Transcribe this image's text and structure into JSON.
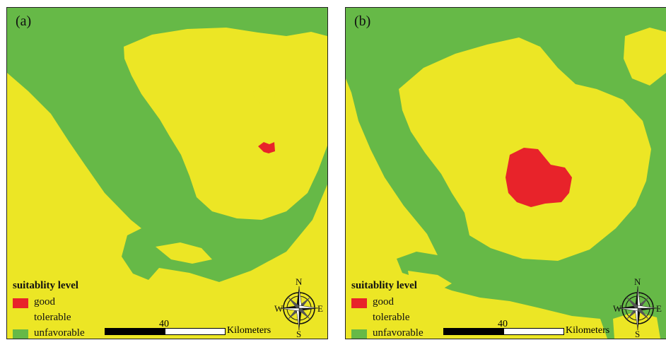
{
  "panels": [
    {
      "label": "(a)",
      "legend": {
        "title": "suitablity level",
        "items": [
          {
            "label": "good",
            "color": "#e8232a"
          },
          {
            "label": "tolerable",
            "color": "#ece625"
          },
          {
            "label": "unfavorable",
            "color": "#66b947"
          }
        ]
      },
      "scale": {
        "value": "40",
        "unit": "Kilometers"
      },
      "compass": {
        "n": "N",
        "s": "S",
        "e": "E",
        "w": "W"
      }
    },
    {
      "label": "(b)",
      "legend": {
        "title": "suitablity level",
        "items": [
          {
            "label": "good",
            "color": "#e8232a"
          },
          {
            "label": "tolerable",
            "color": "#ece625"
          },
          {
            "label": "unfavorable",
            "color": "#66b947"
          }
        ]
      },
      "scale": {
        "value": "40",
        "unit": "Kilometers"
      },
      "compass": {
        "n": "N",
        "s": "S",
        "e": "E",
        "w": "W"
      }
    }
  ],
  "colors": {
    "tolerable": "#ece625",
    "unfavorable": "#66b947",
    "good": "#e8232a"
  }
}
